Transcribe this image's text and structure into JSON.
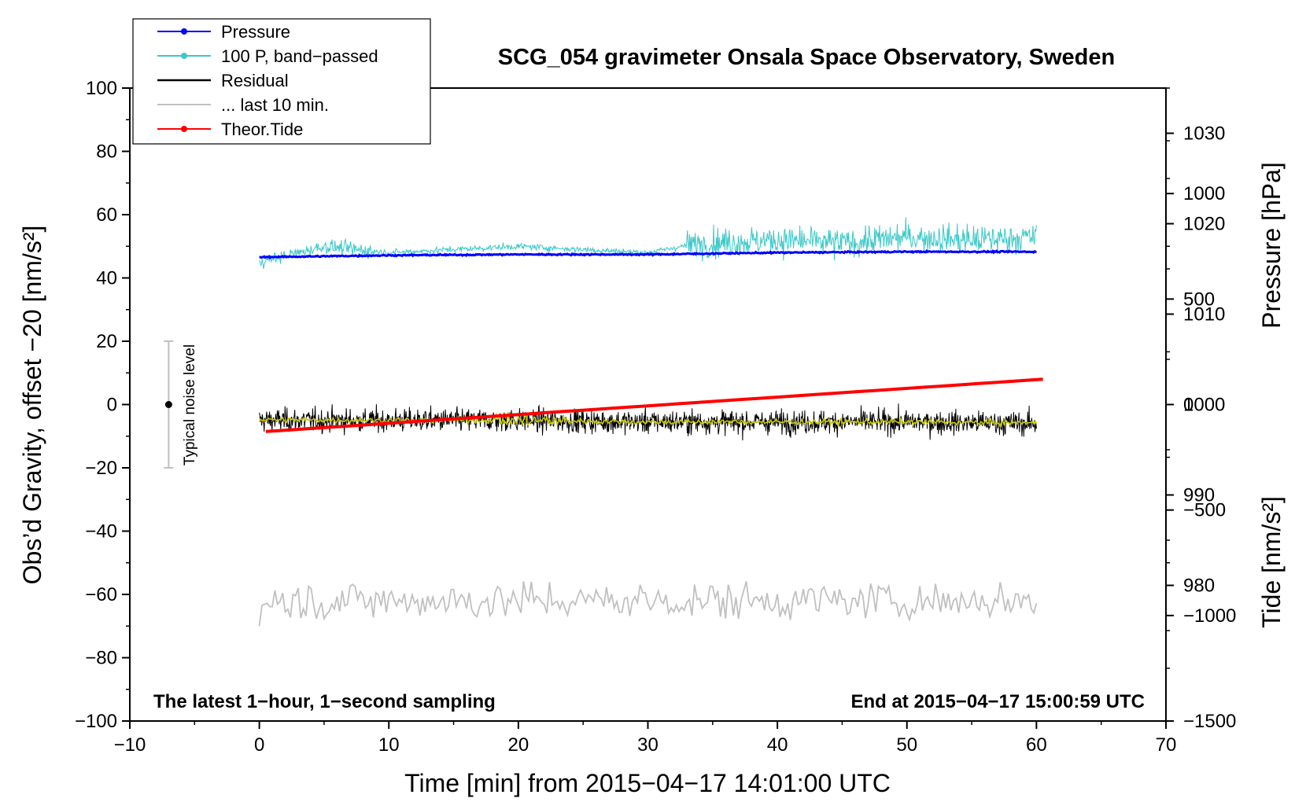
{
  "chart_data": {
    "type": "line",
    "title": "SCG_054 gravimeter Onsala Space Observatory, Sweden",
    "xlabel": "Time [min] from 2015−04−17 14:01:00 UTC",
    "ylabel_left": "Obs’d Gravity, offset −20 [nm/s²]",
    "ylabel_pressure": "Pressure [hPa]",
    "ylabel_tide": "Tide [nm/s²]",
    "xlim": [
      -10,
      70
    ],
    "ylim_left": [
      -100,
      100
    ],
    "ylim_pressure": [
      965,
      1035
    ],
    "ylim_tide": [
      -1500,
      1500
    ],
    "x_ticks": [
      "−10",
      "0",
      "10",
      "20",
      "30",
      "40",
      "50",
      "60",
      "70"
    ],
    "x_tick_values": [
      -10,
      0,
      10,
      20,
      30,
      40,
      50,
      60,
      70
    ],
    "y_left_ticks": [
      "100",
      "80",
      "60",
      "40",
      "20",
      "0",
      "−20",
      "−40",
      "−60",
      "−80",
      "−100"
    ],
    "y_left_tick_values": [
      100,
      80,
      60,
      40,
      20,
      0,
      -20,
      -40,
      -60,
      -80,
      -100
    ],
    "pressure_ticks": [
      "1030",
      "1020",
      "1010",
      "1000",
      "990",
      "980"
    ],
    "pressure_tick_values": [
      1030,
      1020,
      1010,
      1000,
      990,
      980
    ],
    "tide_ticks": [
      "1000",
      "500",
      "0",
      "−500",
      "−1000",
      "−1500"
    ],
    "tide_tick_values": [
      1000,
      500,
      0,
      -500,
      -1000,
      -1500
    ],
    "annotation_left": "The latest 1−hour, 1−second sampling",
    "annotation_right": "End at 2015−04−17 15:00:59 UTC",
    "noise_label": "Typical noise level",
    "noise_bar": {
      "x": -7,
      "center": 0,
      "low": -20,
      "high": 20
    },
    "legend": [
      {
        "label": "Pressure",
        "color": "#0000ff",
        "marker": true
      },
      {
        "label": "100 P, band−passed",
        "color": "#3cc8c8",
        "marker": true
      },
      {
        "label": "Residual",
        "color": "#000000",
        "marker": false
      },
      {
        "label": "... last 10 min.",
        "color": "#c0c0c0",
        "marker": false
      },
      {
        "label": "Theor.Tide",
        "color": "#ff0000",
        "marker": true
      }
    ],
    "series": [
      {
        "name": "Pressure",
        "axis": "pressure",
        "color": "#0000ff",
        "x": [
          0,
          10,
          20,
          30,
          40,
          50,
          60
        ],
        "values": [
          1016.3,
          1016.5,
          1016.6,
          1016.6,
          1016.8,
          1016.9,
          1016.9
        ]
      },
      {
        "name": "100 P, band-passed",
        "axis": "left",
        "color": "#3cc8c8",
        "x": [
          0,
          5,
          10,
          15,
          20,
          25,
          30,
          34,
          40,
          45,
          50,
          55,
          60
        ],
        "values": [
          45,
          50,
          48,
          49,
          50,
          49,
          48,
          51,
          52,
          51,
          53,
          52,
          53
        ]
      },
      {
        "name": "Residual",
        "axis": "left",
        "color": "#000000",
        "x": [
          0,
          10,
          20,
          30,
          40,
          50,
          60
        ],
        "values": [
          -5,
          -5,
          -5,
          -5.5,
          -5.5,
          -5.5,
          -6
        ]
      },
      {
        "name": "Residual smoothed",
        "axis": "left",
        "color": "#c8c800",
        "x": [
          0,
          10,
          20,
          30,
          40,
          50,
          60
        ],
        "values": [
          -4.8,
          -5,
          -5,
          -5.5,
          -5.5,
          -5.5,
          -5.8
        ]
      },
      {
        "name": "... last 10 min.",
        "axis": "left",
        "color": "#c0c0c0",
        "x": [
          0,
          10,
          20,
          30,
          40,
          50,
          60
        ],
        "values": [
          -62,
          -62,
          -62,
          -62,
          -62,
          -62,
          -62
        ]
      },
      {
        "name": "Theor.Tide",
        "axis": "tide",
        "color": "#ff0000",
        "x": [
          0,
          60.5
        ],
        "values": [
          -130,
          120
        ]
      }
    ],
    "colors": {
      "axis": "#000000",
      "noise": "#c0c0c0",
      "yellow": "#c8c800"
    }
  }
}
